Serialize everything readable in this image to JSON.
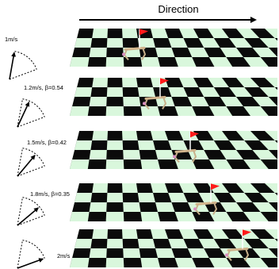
{
  "title": "Direction",
  "rows": [
    {
      "label": "1m/s",
      "speed_mps": 1.0,
      "beta": null
    },
    {
      "label": "1.2m/s, β=0.54",
      "speed_mps": 1.2,
      "beta": 0.54
    },
    {
      "label": "1.5m/s, β=0.42",
      "speed_mps": 1.5,
      "beta": 0.42
    },
    {
      "label": "1.8m/s, β=0.35",
      "speed_mps": 1.8,
      "beta": 0.35
    },
    {
      "label": "2m/s",
      "speed_mps": 2.0,
      "beta": null
    }
  ],
  "colors": {
    "checker_light": "#d9f7dc",
    "checker_dark": "#0b0b0b",
    "flag": "#ff1a1a",
    "robot_body": "#d2b48c",
    "robot_leg": "#c8b08a",
    "robot_accent": "#d98fc0"
  },
  "icons": [
    "direction-arrow-icon",
    "velocity-arrow-icon",
    "flag-icon",
    "robot-icon"
  ]
}
